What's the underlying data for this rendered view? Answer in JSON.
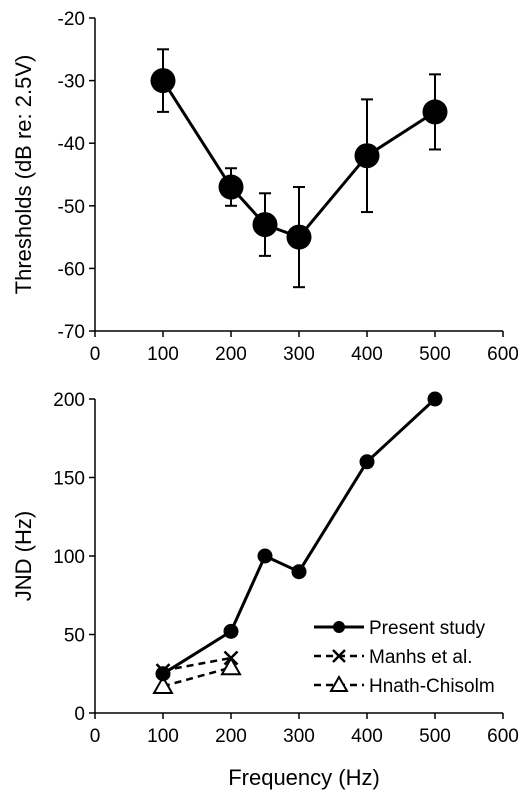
{
  "chart_data": [
    {
      "type": "line",
      "xlabel": "",
      "ylabel": "Thresholds (dB re: 2.5V)",
      "xlim": [
        0,
        600
      ],
      "ylim": [
        -70,
        -20
      ],
      "xticks": [
        0,
        100,
        200,
        300,
        400,
        500,
        600
      ],
      "yticks": [
        -70,
        -60,
        -50,
        -40,
        -30,
        -20
      ],
      "grid": false,
      "series": [
        {
          "x": [
            100,
            200,
            250,
            300,
            400,
            500
          ],
          "y": [
            -30,
            -47,
            -53,
            -55,
            -42,
            -35
          ],
          "error_low": [
            -35,
            -50,
            -58,
            -63,
            -51,
            -41
          ],
          "error_high": [
            -25,
            -44,
            -48,
            -47,
            -33,
            -29
          ],
          "color": "#000000",
          "marker": "filled-circle",
          "line": "solid"
        }
      ]
    },
    {
      "type": "line",
      "xlabel": "Frequency (Hz)",
      "ylabel": "JND (Hz)",
      "xlim": [
        0,
        600
      ],
      "ylim": [
        0,
        200
      ],
      "xticks": [
        0,
        100,
        200,
        300,
        400,
        500,
        600
      ],
      "yticks": [
        0,
        50,
        100,
        150,
        200
      ],
      "grid": false,
      "legend_position": "bottom-right",
      "series": [
        {
          "name": "Present study",
          "x": [
            100,
            200,
            250,
            300,
            400,
            500
          ],
          "y": [
            25,
            52,
            100,
            90,
            160,
            200
          ],
          "color": "#000000",
          "marker": "filled-circle",
          "line": "solid"
        },
        {
          "name": "Manhs et al.",
          "x": [
            100,
            200
          ],
          "y": [
            27,
            35
          ],
          "color": "#000000",
          "marker": "x",
          "line": "dashed"
        },
        {
          "name": "Hnath-Chisolm",
          "x": [
            100,
            200
          ],
          "y": [
            17,
            29
          ],
          "color": "#000000",
          "marker": "open-triangle",
          "line": "dashed"
        }
      ]
    }
  ]
}
